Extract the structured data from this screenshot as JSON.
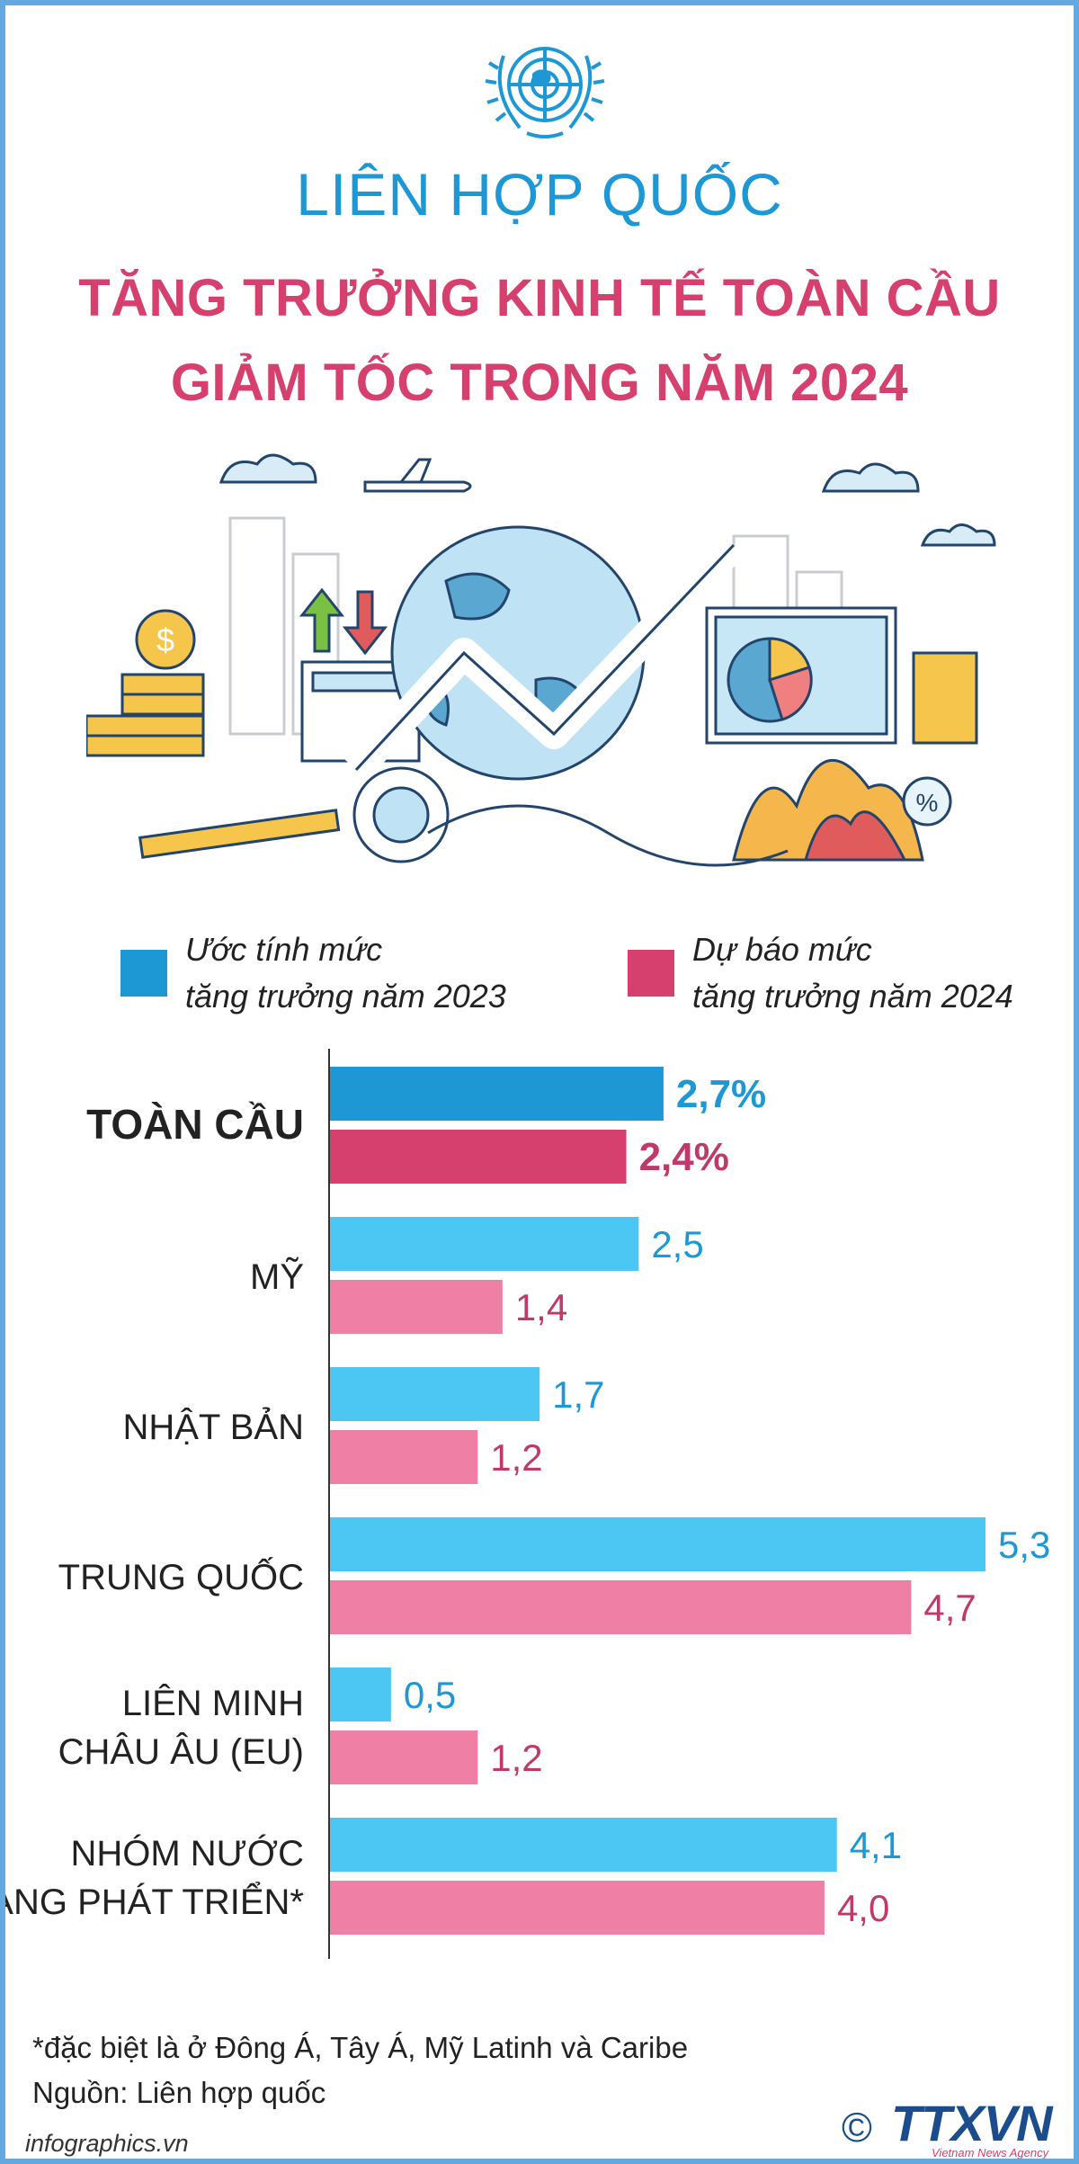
{
  "header": {
    "organization": "LIÊN HỢP QUỐC",
    "headline_line1": "TĂNG TRƯỞNG KINH TẾ TOÀN CẦU",
    "headline_line2": "GIẢM TỐC TRONG NĂM 2024"
  },
  "legend": {
    "item_2023_line1": "Ước tính mức",
    "item_2023_line2": "tăng trưởng năm 2023",
    "item_2024_line1": "Dự báo mức",
    "item_2024_line2": "tăng trưởng năm 2024"
  },
  "colors": {
    "accent_blue": "#1d98d5",
    "title_pink": "#d6406e",
    "global_2023": "#1d98d5",
    "global_2024": "#d6406e",
    "bar_2023": "#4cc6f3",
    "bar_2024": "#f07fa5",
    "label_2023": "#1d98d5",
    "label_2024": "#c0396b",
    "frame": "#63a9e0"
  },
  "chart_data": {
    "type": "bar",
    "orientation": "horizontal",
    "series": [
      {
        "name": "Ước tính mức tăng trưởng năm 2023",
        "values": [
          2.7,
          2.5,
          1.7,
          5.3,
          0.5,
          4.1
        ],
        "labels": [
          "2,7%",
          "2,5",
          "1,7",
          "5,3",
          "0,5",
          "4,1"
        ]
      },
      {
        "name": "Dự báo mức tăng trưởng năm 2024",
        "values": [
          2.4,
          1.4,
          1.2,
          4.7,
          1.2,
          4.0
        ],
        "labels": [
          "2,4%",
          "1,4",
          "1,2",
          "4,7",
          "1,2",
          "4,0"
        ]
      }
    ],
    "categories": [
      {
        "lines": [
          "TOÀN CẦU"
        ],
        "highlight": true
      },
      {
        "lines": [
          "MỸ"
        ]
      },
      {
        "lines": [
          "NHẬT BẢN"
        ]
      },
      {
        "lines": [
          "TRUNG QUỐC"
        ]
      },
      {
        "lines": [
          "LIÊN MINH",
          "CHÂU ÂU (EU)"
        ]
      },
      {
        "lines": [
          "NHÓM NƯỚC",
          "ĐANG PHÁT TRIỂN*"
        ]
      }
    ],
    "unit": "%",
    "xlim": [
      0,
      5.3
    ]
  },
  "footer": {
    "footnote": "*đặc biệt là ở Đông Á, Tây Á, Mỹ Latinh và Caribe",
    "source": "Nguồn: Liên hợp quốc",
    "site": "infographics.vn",
    "copyright_symbol": "©",
    "agency_logo": "TTXVN",
    "agency_sub": "Vietnam News Agency"
  }
}
